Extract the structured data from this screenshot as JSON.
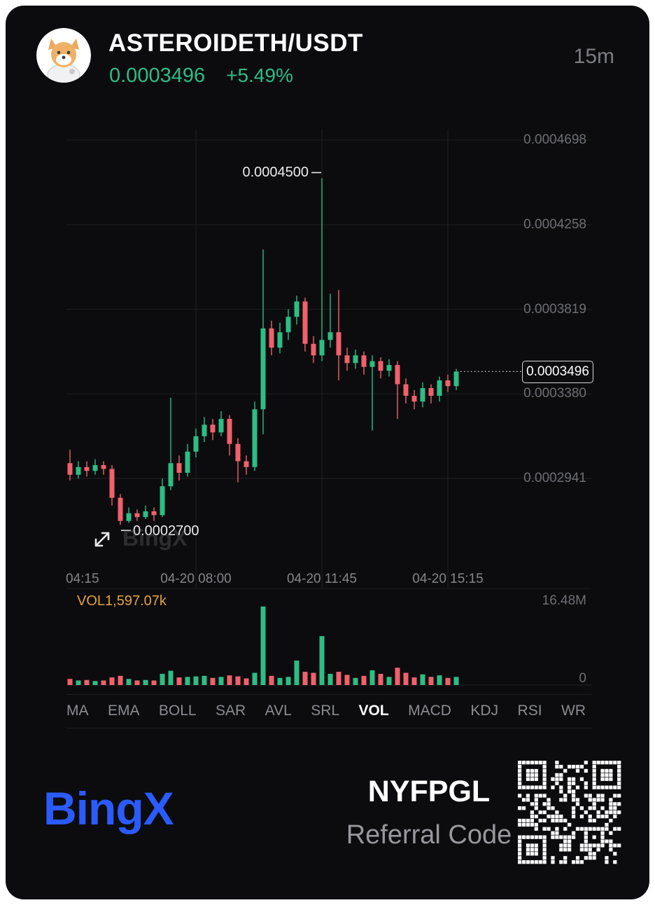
{
  "header": {
    "symbol": "ASTEROIDETH/USDT",
    "price": "0.0003496",
    "change": "+5.49%",
    "timeframe": "15m"
  },
  "colors": {
    "up": "#2ebd85",
    "down": "#f0616d",
    "accent_blue": "#2b5bfe",
    "volume_label_orange": "#e6a23c",
    "card_background": "#0c0c0e"
  },
  "watermark": "BingX",
  "chart_data": {
    "type": "candlestick",
    "interval": "15m",
    "title": "ASTEROIDETH/USDT 15m",
    "y_axis_labels": [
      "0.0004698",
      "0.0004258",
      "0.0003819",
      "0.0003380",
      "0.0002941"
    ],
    "x_axis_labels": [
      {
        "label": "04:15",
        "index": 0
      },
      {
        "label": "04-20 08:00",
        "index": 15
      },
      {
        "label": "04-20 11:45",
        "index": 30
      },
      {
        "label": "04-20 15:15",
        "index": 45
      }
    ],
    "high_annotation": "0.0004500",
    "low_annotation": "0.0002700",
    "last_price": "0.0003496",
    "y_range": [
      0.000237,
      0.000475
    ],
    "grid": true,
    "candles": [
      [
        0.000302,
        0.000309,
        0.000293,
        0.000296,
        1.2
      ],
      [
        0.000296,
        0.000303,
        0.000294,
        0.0003,
        0.9
      ],
      [
        0.0003,
        0.000303,
        0.000295,
        0.000298,
        1.0
      ],
      [
        0.000298,
        0.000304,
        0.000296,
        0.000301,
        0.8
      ],
      [
        0.000301,
        0.000303,
        0.000296,
        0.000299,
        0.9
      ],
      [
        0.000299,
        0.000301,
        0.00028,
        0.000284,
        1.5
      ],
      [
        0.000284,
        0.000286,
        0.00027,
        0.000272,
        1.8
      ],
      [
        0.000272,
        0.000279,
        0.000271,
        0.000276,
        1.2
      ],
      [
        0.000276,
        0.000278,
        0.000272,
        0.000274,
        0.9
      ],
      [
        0.000274,
        0.00028,
        0.000273,
        0.000277,
        1.0
      ],
      [
        0.000277,
        0.000279,
        0.000272,
        0.000275,
        0.9
      ],
      [
        0.000275,
        0.000294,
        0.000274,
        0.00029,
        2.2
      ],
      [
        0.00029,
        0.000336,
        0.000288,
        0.000302,
        2.8
      ],
      [
        0.000302,
        0.000306,
        0.000293,
        0.000297,
        1.5
      ],
      [
        0.000297,
        0.000312,
        0.000295,
        0.000308,
        1.6
      ],
      [
        0.000308,
        0.00032,
        0.000305,
        0.000316,
        1.7
      ],
      [
        0.000316,
        0.000326,
        0.000313,
        0.000322,
        1.8
      ],
      [
        0.000322,
        0.000325,
        0.000314,
        0.000318,
        1.4
      ],
      [
        0.000318,
        0.000329,
        0.000316,
        0.000325,
        1.6
      ],
      [
        0.000325,
        0.000327,
        0.000306,
        0.000312,
        1.9
      ],
      [
        0.000312,
        0.000315,
        0.000292,
        0.000303,
        1.7
      ],
      [
        0.000303,
        0.000306,
        0.000296,
        0.0003,
        1.3
      ],
      [
        0.0003,
        0.000334,
        0.000298,
        0.00033,
        2.4
      ],
      [
        0.00033,
        0.000413,
        0.000317,
        0.000372,
        15.4
      ],
      [
        0.000372,
        0.000376,
        0.000358,
        0.000362,
        1.8
      ],
      [
        0.000362,
        0.000375,
        0.000359,
        0.00037,
        1.4
      ],
      [
        0.00037,
        0.000382,
        0.000366,
        0.000378,
        1.6
      ],
      [
        0.000378,
        0.000389,
        0.000374,
        0.000386,
        4.8
      ],
      [
        0.000386,
        0.000388,
        0.00036,
        0.000364,
        2.6
      ],
      [
        0.000364,
        0.000368,
        0.000354,
        0.000358,
        2.4
      ],
      [
        0.000358,
        0.00045,
        0.000355,
        0.000366,
        9.6
      ],
      [
        0.000366,
        0.00039,
        0.000362,
        0.00037,
        2.2
      ],
      [
        0.00037,
        0.000392,
        0.000345,
        0.000358,
        2.6
      ],
      [
        0.000358,
        0.000362,
        0.00035,
        0.000354,
        2.0
      ],
      [
        0.000354,
        0.000361,
        0.000351,
        0.000358,
        1.4
      ],
      [
        0.000358,
        0.00036,
        0.000348,
        0.000352,
        1.8
      ],
      [
        0.000352,
        0.000358,
        0.000319,
        0.000355,
        2.9
      ],
      [
        0.000355,
        0.000357,
        0.000346,
        0.00035,
        2.2
      ],
      [
        0.00035,
        0.000356,
        0.000347,
        0.000353,
        1.6
      ],
      [
        0.000353,
        0.000355,
        0.000325,
        0.000343,
        3.4
      ],
      [
        0.000343,
        0.000346,
        0.000333,
        0.000337,
        2.4
      ],
      [
        0.000337,
        0.00034,
        0.00033,
        0.000334,
        1.5
      ],
      [
        0.000334,
        0.000344,
        0.000331,
        0.000341,
        2.1
      ],
      [
        0.000341,
        0.000343,
        0.000333,
        0.000337,
        1.6
      ],
      [
        0.000337,
        0.000347,
        0.000334,
        0.000345,
        1.9
      ],
      [
        0.000345,
        0.000348,
        0.000339,
        0.000342,
        1.4
      ],
      [
        0.000342,
        0.000351,
        0.00034,
        0.0003496,
        1.6
      ]
    ],
    "volume": {
      "label": "VOL1,597.07k",
      "max_label": "16.48M",
      "zero_label": "0",
      "scale_max": 16.48
    }
  },
  "tabs": {
    "items": [
      "MA",
      "EMA",
      "BOLL",
      "SAR",
      "AVL",
      "SRL",
      "VOL",
      "MACD",
      "KDJ",
      "RSI",
      "WR"
    ],
    "active": "VOL"
  },
  "footer": {
    "brand": "BingX",
    "referral_code": "NYFPGL",
    "referral_label": "Referral Code"
  }
}
